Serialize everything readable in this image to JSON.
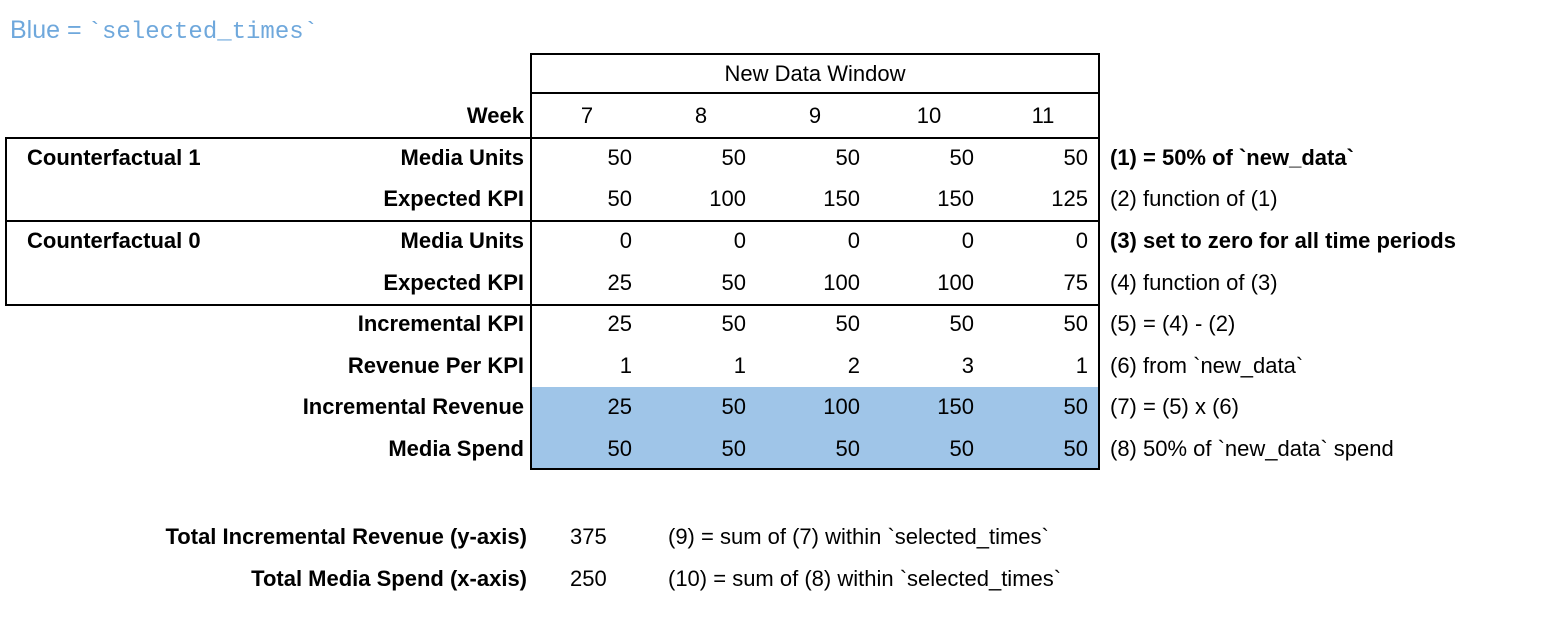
{
  "legend": {
    "prefix": "Blue =",
    "code": "`selected_times`",
    "color": "#6FA8DC"
  },
  "table": {
    "window_header": "New Data Window",
    "week_label": "Week",
    "weeks": [
      "7",
      "8",
      "9",
      "10",
      "11"
    ],
    "highlight_color": "#9FC5E8",
    "rows": [
      {
        "group": "Counterfactual 1",
        "label": "Media Units",
        "values": [
          "50",
          "50",
          "50",
          "50",
          "50"
        ],
        "annotation": "(1) = 50% of `new_data`",
        "annotation_bold": true,
        "highlight": false
      },
      {
        "group": "",
        "label": "Expected KPI",
        "values": [
          "50",
          "100",
          "150",
          "150",
          "125"
        ],
        "annotation": "(2) function of (1)",
        "annotation_bold": false,
        "highlight": false
      },
      {
        "group": "Counterfactual 0",
        "label": "Media Units",
        "values": [
          "0",
          "0",
          "0",
          "0",
          "0"
        ],
        "annotation": "(3) set to zero for all time periods",
        "annotation_bold": true,
        "highlight": false
      },
      {
        "group": "",
        "label": "Expected KPI",
        "values": [
          "25",
          "50",
          "100",
          "100",
          "75"
        ],
        "annotation": "(4) function of (3)",
        "annotation_bold": false,
        "highlight": false
      },
      {
        "group": "",
        "label": "Incremental KPI",
        "values": [
          "25",
          "50",
          "50",
          "50",
          "50"
        ],
        "annotation": "(5) = (4) - (2)",
        "annotation_bold": false,
        "highlight": false
      },
      {
        "group": "",
        "label": "Revenue Per KPI",
        "values": [
          "1",
          "1",
          "2",
          "3",
          "1"
        ],
        "annotation": "(6) from `new_data`",
        "annotation_bold": false,
        "highlight": false
      },
      {
        "group": "",
        "label": "Incremental Revenue",
        "values": [
          "25",
          "50",
          "100",
          "150",
          "50"
        ],
        "annotation": "(7) = (5) x (6)",
        "annotation_bold": false,
        "highlight": true
      },
      {
        "group": "",
        "label": "Media Spend",
        "values": [
          "50",
          "50",
          "50",
          "50",
          "50"
        ],
        "annotation": "(8) 50% of `new_data` spend",
        "annotation_bold": false,
        "highlight": true
      }
    ]
  },
  "totals": [
    {
      "label": "Total Incremental Revenue (y-axis)",
      "value": "375",
      "annotation": "(9) = sum of (7) within `selected_times`"
    },
    {
      "label": "Total Media Spend (x-axis)",
      "value": "250",
      "annotation": "(10) = sum of (8) within `selected_times`"
    }
  ],
  "chart_data": {
    "type": "table",
    "title": "New Data Window",
    "x_label": "Week",
    "categories": [
      7,
      8,
      9,
      10,
      11
    ],
    "series": [
      {
        "group": "Counterfactual 1",
        "name": "Media Units",
        "values": [
          50,
          50,
          50,
          50,
          50
        ]
      },
      {
        "group": "Counterfactual 1",
        "name": "Expected KPI",
        "values": [
          50,
          100,
          150,
          150,
          125
        ]
      },
      {
        "group": "Counterfactual 0",
        "name": "Media Units",
        "values": [
          0,
          0,
          0,
          0,
          0
        ]
      },
      {
        "group": "Counterfactual 0",
        "name": "Expected KPI",
        "values": [
          25,
          50,
          100,
          100,
          75
        ]
      },
      {
        "group": "",
        "name": "Incremental KPI",
        "values": [
          25,
          50,
          50,
          50,
          50
        ]
      },
      {
        "group": "",
        "name": "Revenue Per KPI",
        "values": [
          1,
          1,
          2,
          3,
          1
        ]
      },
      {
        "group": "",
        "name": "Incremental Revenue",
        "values": [
          25,
          50,
          100,
          150,
          50
        ],
        "highlighted": true
      },
      {
        "group": "",
        "name": "Media Spend",
        "values": [
          50,
          50,
          50,
          50,
          50
        ],
        "highlighted": true
      }
    ],
    "totals": {
      "Total Incremental Revenue (y-axis)": 375,
      "Total Media Spend (x-axis)": 250
    },
    "legend": "Blue = `selected_times`"
  }
}
